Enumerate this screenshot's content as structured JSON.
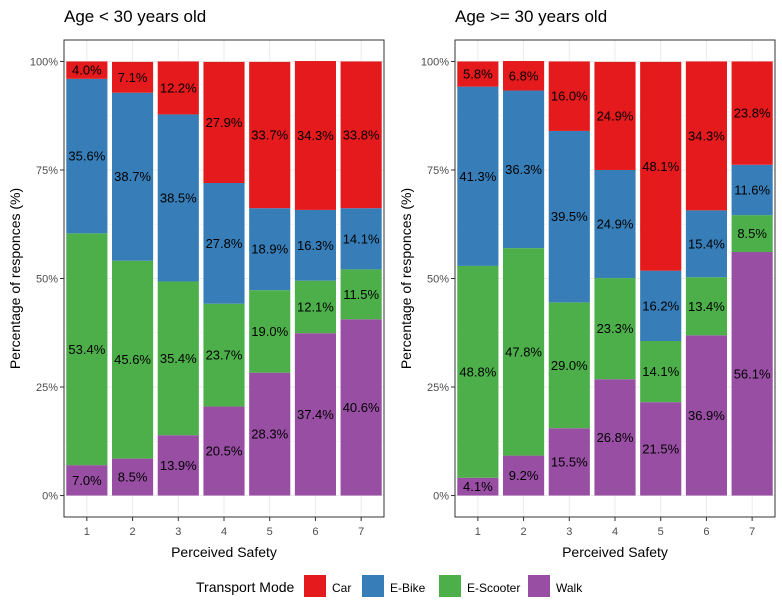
{
  "chart_data": [
    {
      "type": "bar",
      "stacked": true,
      "title": "Age < 30 years old",
      "xlabel": "Perceived Safety",
      "ylabel": "Percentage of responces (%)",
      "categories": [
        "1",
        "2",
        "3",
        "4",
        "5",
        "6",
        "7"
      ],
      "yticks": [
        "0%",
        "25%",
        "50%",
        "75%",
        "100%"
      ],
      "ylim": [
        0,
        100
      ],
      "series": [
        {
          "name": "Walk",
          "values": [
            7.0,
            8.5,
            13.9,
            20.5,
            28.3,
            37.4,
            40.6
          ],
          "labels": [
            "7.0%",
            "8.5%",
            "13.9%",
            "20.5%",
            "28.3%",
            "37.4%",
            "40.6%"
          ]
        },
        {
          "name": "E-Scooter",
          "values": [
            53.4,
            45.6,
            35.4,
            23.7,
            19.0,
            12.1,
            11.5
          ],
          "labels": [
            "53.4%",
            "45.6%",
            "35.4%",
            "23.7%",
            "19.0%",
            "12.1%",
            "11.5%"
          ]
        },
        {
          "name": "E-Bike",
          "values": [
            35.6,
            38.7,
            38.5,
            27.8,
            18.9,
            16.3,
            14.1
          ],
          "labels": [
            "35.6%",
            "38.7%",
            "38.5%",
            "27.8%",
            "18.9%",
            "16.3%",
            "14.1%"
          ]
        },
        {
          "name": "Car",
          "values": [
            4.0,
            7.1,
            12.2,
            27.9,
            33.7,
            34.3,
            33.8
          ],
          "labels": [
            "4.0%",
            "7.1%",
            "12.2%",
            "27.9%",
            "33.7%",
            "34.3%",
            "33.8%"
          ]
        }
      ]
    },
    {
      "type": "bar",
      "stacked": true,
      "title": "Age >= 30 years old",
      "xlabel": "Perceived Safety",
      "ylabel": "Percentage of responces (%)",
      "categories": [
        "1",
        "2",
        "3",
        "4",
        "5",
        "6",
        "7"
      ],
      "yticks": [
        "0%",
        "25%",
        "50%",
        "75%",
        "100%"
      ],
      "ylim": [
        0,
        100
      ],
      "series": [
        {
          "name": "Walk",
          "values": [
            4.1,
            9.2,
            15.5,
            26.8,
            21.5,
            36.9,
            56.1
          ],
          "labels": [
            "4.1%",
            "9.2%",
            "15.5%",
            "26.8%",
            "21.5%",
            "36.9%",
            "56.1%"
          ]
        },
        {
          "name": "E-Scooter",
          "values": [
            48.8,
            47.8,
            29.0,
            23.3,
            14.1,
            13.4,
            8.5
          ],
          "labels": [
            "48.8%",
            "47.8%",
            "29.0%",
            "23.3%",
            "14.1%",
            "13.4%",
            "8.5%"
          ]
        },
        {
          "name": "E-Bike",
          "values": [
            41.3,
            36.3,
            39.5,
            24.9,
            16.2,
            15.4,
            11.6
          ],
          "labels": [
            "41.3%",
            "36.3%",
            "39.5%",
            "24.9%",
            "16.2%",
            "15.4%",
            "11.6%"
          ]
        },
        {
          "name": "Car",
          "values": [
            5.8,
            6.8,
            16.0,
            24.9,
            48.1,
            34.3,
            23.8
          ],
          "labels": [
            "5.8%",
            "6.8%",
            "16.0%",
            "24.9%",
            "48.1%",
            "34.3%",
            "23.8%"
          ]
        }
      ]
    }
  ],
  "legend": {
    "title": "Transport Mode",
    "placement": "bottom",
    "items": [
      {
        "name": "Car",
        "color": "#e41a1c"
      },
      {
        "name": "E-Bike",
        "color": "#377eb8"
      },
      {
        "name": "E-Scooter",
        "color": "#4daf4a"
      },
      {
        "name": "Walk",
        "color": "#984ea3"
      }
    ]
  },
  "colors": {
    "Car": "#e41a1c",
    "E-Bike": "#377eb8",
    "E-Scooter": "#4daf4a",
    "Walk": "#984ea3"
  },
  "grid": true
}
